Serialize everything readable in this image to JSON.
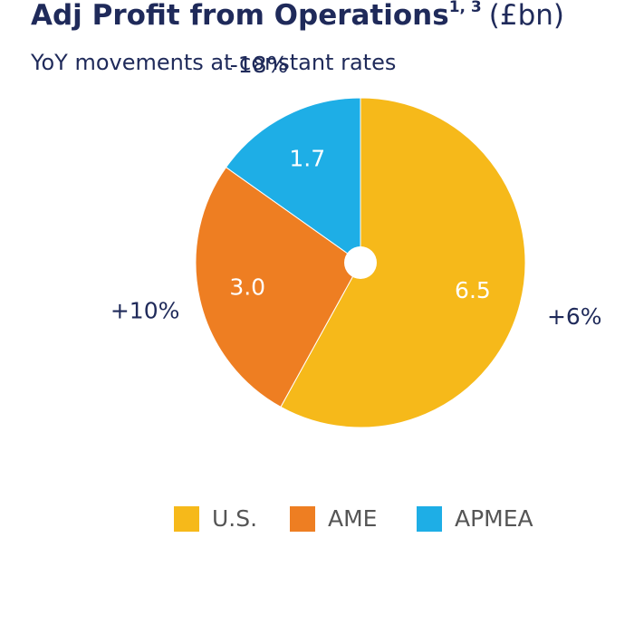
{
  "chart_data": {
    "type": "pie",
    "title": "Adj Profit from Operations",
    "title_superscript": "1, 3",
    "title_unit": "(£bn)",
    "subtitle": "YoY movements at constant rates",
    "categories": [
      "U.S.",
      "AME",
      "APMEA"
    ],
    "values": [
      6.5,
      3.0,
      1.7
    ],
    "value_labels": [
      "6.5",
      "3.0",
      "1.7"
    ],
    "changes": [
      "+6%",
      "+10%",
      "-18%"
    ],
    "colors": [
      "#f6b91a",
      "#ee7e22",
      "#1eaee6"
    ],
    "legend": "bottom"
  }
}
